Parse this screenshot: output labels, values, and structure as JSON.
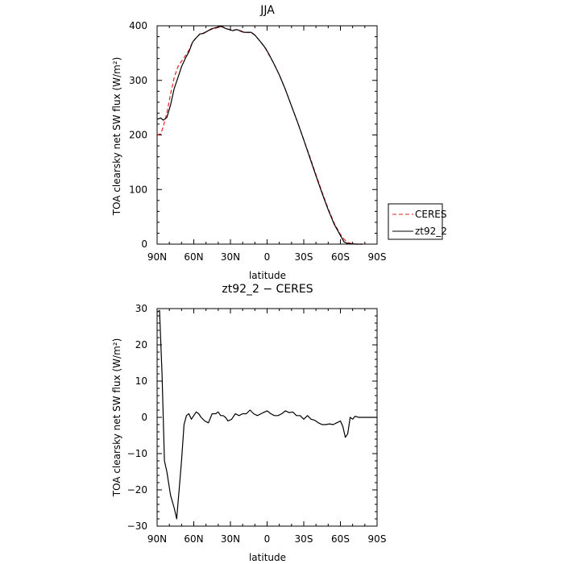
{
  "chart_data": [
    {
      "type": "line",
      "title": "JJA",
      "xlabel": "latitude",
      "ylabel": "TOA clearsky net SW flux (W/m²)",
      "xlim": [
        90,
        -90
      ],
      "ylim": [
        0,
        400
      ],
      "x_ticks": [
        90,
        60,
        30,
        0,
        -30,
        -60,
        -90
      ],
      "x_tick_labels": [
        "90N",
        "60N",
        "30N",
        "0",
        "30S",
        "60S",
        "90S"
      ],
      "y_ticks": [
        0,
        100,
        200,
        300,
        400
      ],
      "y_tick_labels": [
        "0",
        "100",
        "200",
        "300",
        "400"
      ],
      "grid": false,
      "legend": "outside-right",
      "series": [
        {
          "name": "CERES",
          "color": "#e8211f",
          "dash": "dashed",
          "x": [
            90,
            87,
            85,
            82,
            79,
            76,
            73,
            70,
            67,
            64,
            61,
            58,
            55,
            52,
            49,
            46,
            43,
            40,
            37,
            34,
            31,
            28,
            25,
            22,
            19,
            16,
            13,
            10,
            7,
            4,
            1,
            -2,
            -5,
            -10,
            -15,
            -20,
            -25,
            -30,
            -35,
            -40,
            -45,
            -50,
            -55,
            -60,
            -63,
            -66,
            -69,
            -72,
            -75,
            -78
          ],
          "y": [
            200,
            202,
            215,
            240,
            275,
            305,
            325,
            335,
            345,
            355,
            370,
            378,
            385,
            387,
            390,
            393,
            395,
            397,
            398,
            396,
            393,
            392,
            393,
            390,
            388,
            388,
            387,
            383,
            375,
            367,
            357,
            345,
            333,
            310,
            283,
            253,
            223,
            191,
            160,
            127,
            95,
            65,
            38,
            18,
            9,
            3,
            1,
            0,
            0,
            0
          ]
        },
        {
          "name": "zt92_2",
          "color": "#000000",
          "dash": "solid",
          "x": [
            90,
            87,
            85,
            82,
            79,
            76,
            73,
            70,
            67,
            64,
            61,
            58,
            55,
            52,
            49,
            46,
            43,
            40,
            37,
            34,
            31,
            28,
            25,
            22,
            19,
            16,
            13,
            10,
            7,
            4,
            1,
            -2,
            -5,
            -10,
            -15,
            -20,
            -25,
            -30,
            -35,
            -40,
            -45,
            -50,
            -55,
            -60,
            -63,
            -66,
            -69,
            -72,
            -75,
            -78
          ],
          "y": [
            229,
            231,
            227,
            232,
            255,
            285,
            305,
            325,
            340,
            352,
            370,
            378,
            385,
            386,
            390,
            394,
            396,
            398,
            399,
            395,
            393,
            391,
            393,
            391,
            388,
            388,
            388,
            383,
            375,
            367,
            358,
            346,
            333,
            310,
            283,
            253,
            223,
            191,
            158,
            125,
            93,
            63,
            36,
            16,
            4,
            1,
            1,
            0,
            0,
            0
          ]
        }
      ]
    },
    {
      "type": "line",
      "title": "zt92_2 − CERES",
      "xlabel": "latitude",
      "ylabel": "TOA clearsky net SW flux (W/m²)",
      "xlim": [
        90,
        -90
      ],
      "ylim": [
        -30,
        30
      ],
      "x_ticks": [
        90,
        60,
        30,
        0,
        -30,
        -60,
        -90
      ],
      "x_tick_labels": [
        "90N",
        "60N",
        "30N",
        "0",
        "30S",
        "60S",
        "90S"
      ],
      "y_ticks": [
        -30,
        -20,
        -10,
        0,
        10,
        20,
        30
      ],
      "y_tick_labels": [
        "−30",
        "−20",
        "−10",
        "0",
        "10",
        "20",
        "30"
      ],
      "grid": false,
      "series": [
        {
          "color": "#000000",
          "dash": "solid",
          "x": [
            90,
            88,
            86,
            84,
            82,
            79,
            76,
            74,
            72,
            70,
            68,
            66,
            64,
            62,
            60,
            58,
            56,
            54,
            51,
            48,
            45,
            42,
            40,
            38,
            36,
            34,
            32,
            29,
            26,
            23,
            20,
            17,
            14,
            11,
            8,
            5,
            2,
            0,
            -3,
            -6,
            -9,
            -12,
            -15,
            -18,
            -21,
            -24,
            -27,
            -30,
            -33,
            -36,
            -39,
            -42,
            -45,
            -48,
            -51,
            -54,
            -57,
            -60,
            -62,
            -64,
            -66,
            -68,
            -70,
            -72,
            -75,
            -78,
            -82,
            -86,
            -90
          ],
          "y": [
            29,
            29.5,
            12,
            -12,
            -15,
            -21.5,
            -25,
            -28,
            -20,
            -12,
            -2,
            0.5,
            1,
            -0.5,
            0.5,
            1.5,
            1,
            0,
            -1,
            -1.5,
            1,
            1,
            1.5,
            0.5,
            0.5,
            0,
            -1,
            -0.5,
            1,
            0.5,
            1,
            1,
            2,
            1,
            0.5,
            1,
            1.5,
            1.8,
            1,
            0.5,
            0.5,
            1,
            1.8,
            1.3,
            1.5,
            0.5,
            0.5,
            -0.5,
            0.5,
            -0.5,
            -0.8,
            -1.5,
            -2,
            -2,
            -1.8,
            -2,
            -1.5,
            -1,
            -2.5,
            -5.5,
            -4.5,
            0,
            -0.5,
            0.3,
            0,
            0,
            0,
            0,
            0
          ]
        }
      ]
    }
  ]
}
